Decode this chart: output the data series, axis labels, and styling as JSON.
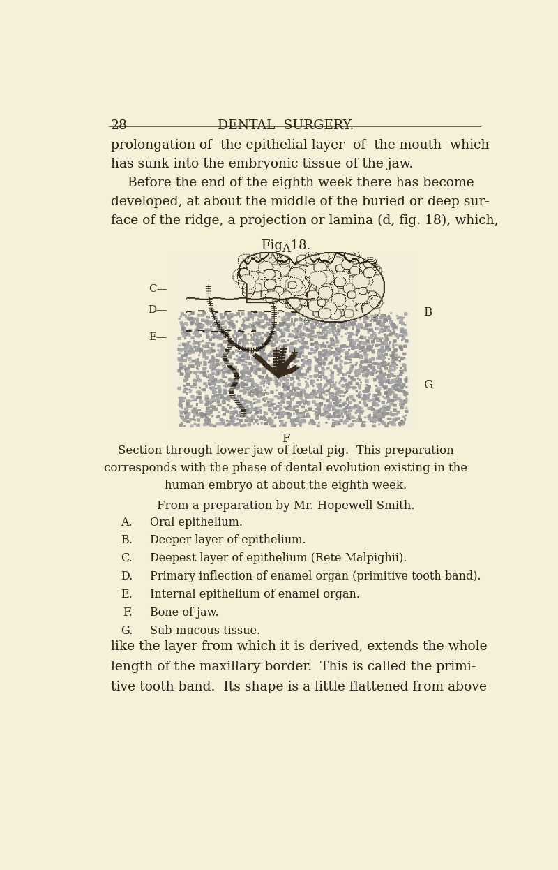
{
  "background_color": "#f5f0d8",
  "page_number": "28",
  "header_title": "DENTAL  SURGERY.",
  "body_text_top": [
    "prolongation of  the epithelial layer  of  the mouth  which",
    "has sunk into the embryonic tissue of the jaw.",
    "    Before the end of the eighth week there has become",
    "developed, at about the middle of the buried or deep sur-",
    "face of the ridge, a projection or lamina (d, fig. 18), which,"
  ],
  "fig_title": "Fig. 18.",
  "fig_label_A": "A",
  "fig_label_B": "B",
  "fig_label_C": "C—",
  "fig_label_D": "D—",
  "fig_label_E": "E—",
  "fig_label_G": "G",
  "fig_label_F": "F",
  "caption_line1": "Section through lower jaw of fœtal pig.  This preparation",
  "caption_line2": "corresponds with the phase of dental evolution existing in the",
  "caption_line3": "human embryo at about the eighth week.",
  "caption_line4": "From a preparation by Mr. Hopewell Smith.",
  "legend_items": [
    {
      "letter": "A.",
      "text": "Oral epithelium."
    },
    {
      "letter": "B.",
      "text": "Deeper layer of epithelium."
    },
    {
      "letter": "C.",
      "text": "Deepest layer of epithelium (Rete Malpighii)."
    },
    {
      "letter": "D.",
      "text": "Primary inflection of enamel organ (primitive tooth band)."
    },
    {
      "letter": "E.",
      "text": "Internal epithelium of enamel organ."
    },
    {
      "letter": "F.",
      "text": "Bone of jaw."
    },
    {
      "letter": "G.",
      "text": "Sub-mucous tissue."
    }
  ],
  "body_text_bottom": [
    "like the layer from which it is derived, extends the whole",
    "length of the maxillary border.  This is called the primi-",
    "tive tooth band.  Its shape is a little flattened from above"
  ],
  "text_color": "#2a2018",
  "font_size_body": 13.5,
  "font_size_header": 13.5,
  "font_size_caption": 12.0,
  "font_size_legend": 11.5,
  "font_size_fig_title": 13.0
}
